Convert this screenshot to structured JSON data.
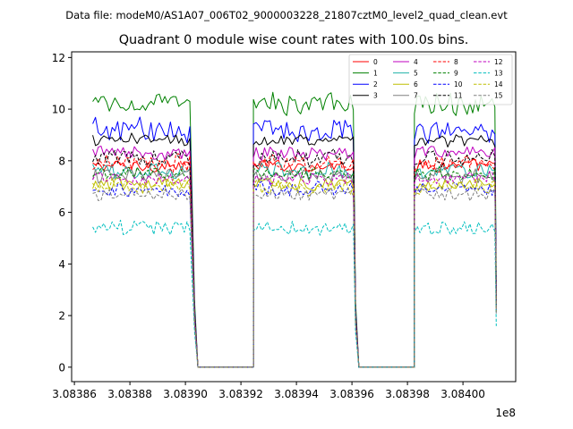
{
  "figure": {
    "suptitle": "Data file: modeM0/AS1A07_006T02_9000003228_21807cztM0_level2_quad_clean.evt"
  },
  "chart_data": {
    "type": "line",
    "title": "Quadrant 0 module wise count rates with 100.0s bins.",
    "xlabel": "",
    "ylabel": "",
    "x_offset_label": "1e8",
    "xlim": [
      3.083859,
      3.084019
    ],
    "ylim": [
      -0.56,
      12.22
    ],
    "xticks": [
      3.08386,
      3.08388,
      3.0839,
      3.08392,
      3.08394,
      3.08396,
      3.08398,
      3.084
    ],
    "xtick_labels": [
      "3.08386",
      "3.08388",
      "3.08390",
      "3.08392",
      "3.08394",
      "3.08396",
      "3.08398",
      "3.08400"
    ],
    "yticks": [
      0,
      2,
      4,
      6,
      8,
      10,
      12
    ],
    "ytick_labels": [
      "0",
      "2",
      "4",
      "6",
      "8",
      "10",
      "12"
    ],
    "grid": false,
    "legend_position": "top-right",
    "legend_columns": 4,
    "segments": [
      {
        "x_start": 3.0838666,
        "x_end": 3.0839025,
        "drop_end": 3.0839045
      },
      {
        "x_start": 3.0839245,
        "x_end": 3.0839605,
        "drop_end": 3.0839625
      },
      {
        "x_start": 3.0839825,
        "x_end": 3.084012,
        "drop_end": 3.084012
      }
    ],
    "zero_gaps": [
      {
        "x_start": 3.0839045,
        "x_end": 3.0839245
      },
      {
        "x_start": 3.0839625,
        "x_end": 3.0839825
      }
    ],
    "series": [
      {
        "name": "0",
        "color": "#ff0000",
        "dash": "solid",
        "mean_level": 7.8
      },
      {
        "name": "1",
        "color": "#008000",
        "dash": "solid",
        "mean_level": 10.2
      },
      {
        "name": "2",
        "color": "#0000ff",
        "dash": "solid",
        "mean_level": 9.2
      },
      {
        "name": "3",
        "color": "#000000",
        "dash": "solid",
        "mean_level": 8.8
      },
      {
        "name": "4",
        "color": "#bf00bf",
        "dash": "solid",
        "mean_level": 8.3
      },
      {
        "name": "5",
        "color": "#20b2aa",
        "dash": "solid",
        "mean_level": 7.6
      },
      {
        "name": "6",
        "color": "#bfbf00",
        "dash": "solid",
        "mean_level": 7.1
      },
      {
        "name": "7",
        "color": "#808080",
        "dash": "solid",
        "mean_level": 7.4
      },
      {
        "name": "8",
        "color": "#ff0000",
        "dash": "dashed",
        "mean_level": 7.9
      },
      {
        "name": "9",
        "color": "#008000",
        "dash": "dashed",
        "mean_level": 7.5
      },
      {
        "name": "10",
        "color": "#0000ff",
        "dash": "dashed",
        "mean_level": 6.9
      },
      {
        "name": "11",
        "color": "#000000",
        "dash": "dashed",
        "mean_level": 8.1
      },
      {
        "name": "12",
        "color": "#bf00bf",
        "dash": "dashed",
        "mean_level": 7.3
      },
      {
        "name": "13",
        "color": "#00bfbf",
        "dash": "dashed",
        "mean_level": 5.4
      },
      {
        "name": "14",
        "color": "#bfbf00",
        "dash": "dashed",
        "mean_level": 7.0
      },
      {
        "name": "15",
        "color": "#808080",
        "dash": "dashed",
        "mean_level": 6.7
      }
    ]
  }
}
